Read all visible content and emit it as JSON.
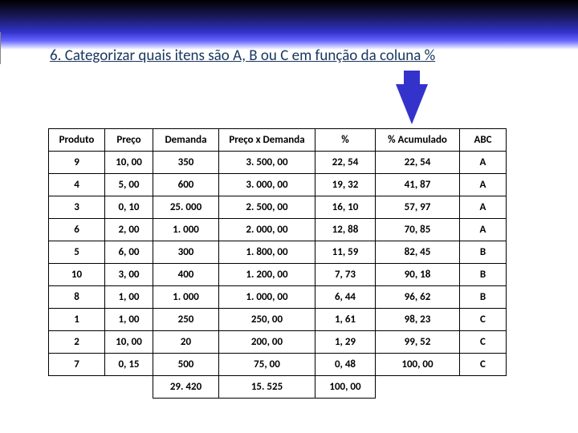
{
  "title": "6. Categorizar quais itens são A, B ou C em função da coluna %",
  "table": {
    "columns": [
      "Produto",
      "Preço",
      "Demanda",
      "Preço x Demanda",
      "%",
      "% Acumulado",
      "ABC"
    ],
    "rows": [
      [
        "9",
        "10, 00",
        "350",
        "3. 500, 00",
        "22, 54",
        "22, 54",
        "A"
      ],
      [
        "4",
        "5, 00",
        "600",
        "3. 000, 00",
        "19, 32",
        "41, 87",
        "A"
      ],
      [
        "3",
        "0, 10",
        "25. 000",
        "2. 500, 00",
        "16, 10",
        "57, 97",
        "A"
      ],
      [
        "6",
        "2, 00",
        "1. 000",
        "2. 000, 00",
        "12, 88",
        "70, 85",
        "A"
      ],
      [
        "5",
        "6, 00",
        "300",
        "1. 800, 00",
        "11, 59",
        "82, 45",
        "B"
      ],
      [
        "10",
        "3, 00",
        "400",
        "1. 200, 00",
        "7, 73",
        "90, 18",
        "B"
      ],
      [
        "8",
        "1, 00",
        "1. 000",
        "1. 000, 00",
        "6, 44",
        "96, 62",
        "B"
      ],
      [
        "1",
        "1, 00",
        "250",
        "250, 00",
        "1, 61",
        "98, 23",
        "C"
      ],
      [
        "2",
        "10, 00",
        "20",
        "200, 00",
        "1, 29",
        "99, 52",
        "C"
      ],
      [
        "7",
        "0, 15",
        "500",
        "75, 00",
        "0, 48",
        "100, 00",
        "C"
      ]
    ],
    "totals": [
      "",
      "",
      "29. 420",
      "15. 525",
      "100, 00",
      "",
      ""
    ],
    "header_bg": "#ffffff",
    "cell_bg": "#ffffff",
    "border_color": "#000000",
    "font_size": 13
  },
  "colors": {
    "title_color": "#17375e",
    "gradient_top": "#000000",
    "gradient_bottom": "#ffffff",
    "arrow_color": "#3333cc"
  }
}
